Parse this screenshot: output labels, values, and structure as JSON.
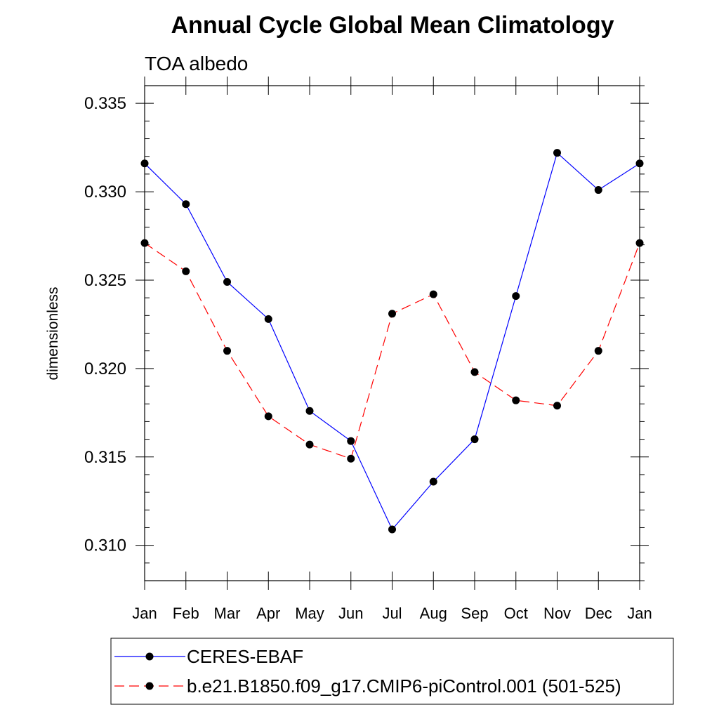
{
  "chart_data": {
    "type": "line",
    "title": "Annual Cycle Global Mean Climatology",
    "subtitle": "TOA albedo",
    "xlabel": "",
    "ylabel": "dimensionless",
    "categories": [
      "Jan",
      "Feb",
      "Mar",
      "Apr",
      "May",
      "Jun",
      "Jul",
      "Aug",
      "Sep",
      "Oct",
      "Nov",
      "Dec",
      "Jan"
    ],
    "ylim": [
      0.308,
      0.336
    ],
    "yticks": [
      0.31,
      0.315,
      0.32,
      0.325,
      0.33,
      0.335
    ],
    "ytick_labels": [
      "0.310",
      "0.315",
      "0.320",
      "0.325",
      "0.330",
      "0.335"
    ],
    "y_minor_step": 0.001,
    "grid": false,
    "legend_position": "bottom",
    "series": [
      {
        "name": "CERES-EBAF",
        "color": "#0000ff",
        "line_style": "solid",
        "values": [
          0.3316,
          0.3293,
          0.3249,
          0.3228,
          0.3176,
          0.3159,
          0.3109,
          0.3136,
          0.316,
          0.3241,
          0.3322,
          0.3301,
          0.3316
        ]
      },
      {
        "name": "b.e21.B1850.f09_g17.CMIP6-piControl.001 (501-525)",
        "color": "#ff0000",
        "line_style": "dashed",
        "values": [
          0.3271,
          0.3255,
          0.321,
          0.3173,
          0.3157,
          0.3149,
          0.3231,
          0.3242,
          0.3198,
          0.3182,
          0.3179,
          0.321,
          0.3271
        ]
      }
    ]
  }
}
